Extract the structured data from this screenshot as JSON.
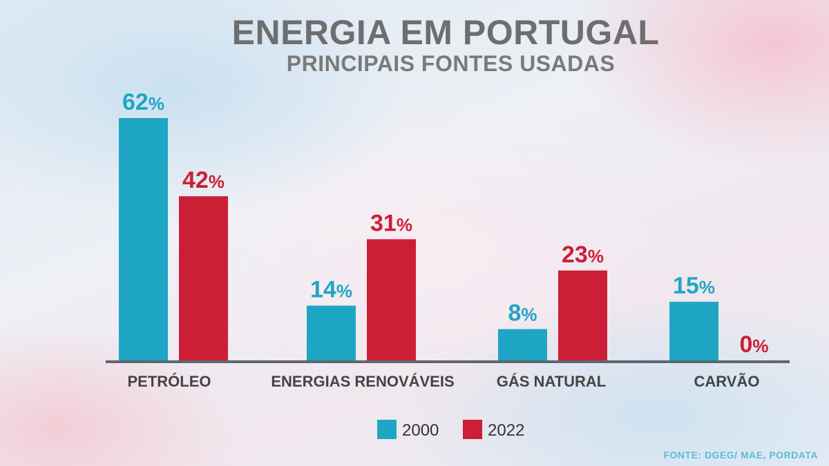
{
  "header": {
    "title": "ENERGIA EM PORTUGAL",
    "subtitle": "PRINCIPAIS FONTES USADAS"
  },
  "source": "FONTE: DGEG/ MAE, PORDATA",
  "colors": {
    "series_2000": "#1fa6c4",
    "series_2022": "#cc1f36",
    "axis": "#5c6670",
    "category_label": "#444444",
    "legend_text": "#333333"
  },
  "chart_data": {
    "type": "bar",
    "title": "ENERGIA EM PORTUGAL",
    "subtitle": "PRINCIPAIS FONTES USADAS",
    "categories": [
      "PETRÓLEO",
      "ENERGIAS RENOVÁVEIS",
      "GÁS NATURAL",
      "CARVÃO"
    ],
    "series": [
      {
        "name": "2000",
        "values": [
          62,
          14,
          8,
          15
        ],
        "labels": [
          "62%",
          "14%",
          "8%",
          "15%"
        ]
      },
      {
        "name": "2022",
        "values": [
          42,
          31,
          23,
          0
        ],
        "labels": [
          "42%",
          "31%",
          "23%",
          "0%"
        ]
      }
    ],
    "unit": "%",
    "ylim": [
      0,
      62
    ],
    "grid": false,
    "legend_position": "bottom"
  }
}
